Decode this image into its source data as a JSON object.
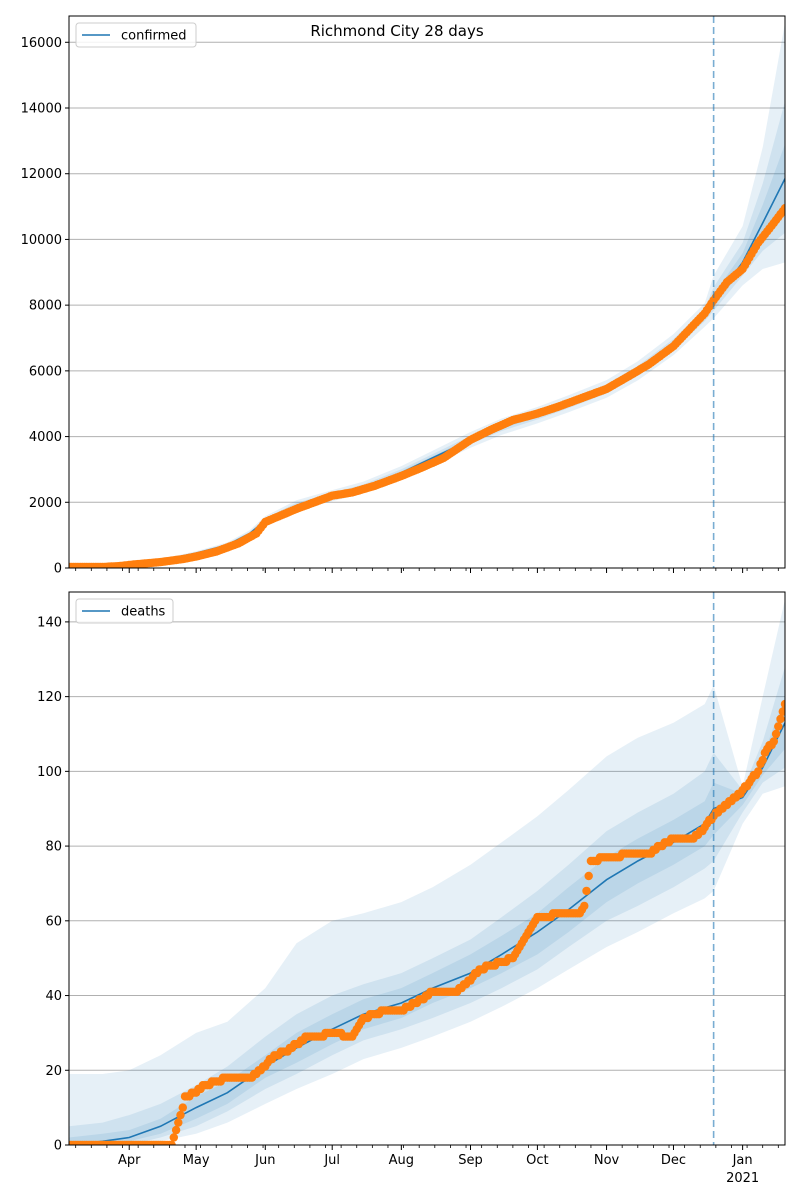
{
  "figure_title": "Richmond City 28 days",
  "colors": {
    "model_line": "#1f77b4",
    "observed_points": "#ff7f0e",
    "band": "#1f77b4",
    "forecast_marker": "#1f77b4",
    "grid": "#b0b0b0"
  },
  "forecast_start": "2020-12-19",
  "x_tick_labels": [
    "Apr",
    "May",
    "Jun",
    "Jul",
    "Aug",
    "Sep",
    "Oct",
    "Nov",
    "Dec",
    "Jan"
  ],
  "x_year_label": "2021",
  "chart_data": [
    {
      "type": "line",
      "legend": "confirmed",
      "legend_position": "top-left",
      "grid": "horizontal",
      "xlim": [
        "2020-03-05",
        "2021-01-20"
      ],
      "ylim": [
        0,
        16800
      ],
      "yticks": [
        0,
        2000,
        4000,
        6000,
        8000,
        10000,
        12000,
        14000,
        16000
      ],
      "model": {
        "x": [
          "2020-03-05",
          "2020-03-25",
          "2020-04-01",
          "2020-04-15",
          "2020-05-01",
          "2020-05-15",
          "2020-05-25",
          "2020-06-01",
          "2020-06-15",
          "2020-07-01",
          "2020-07-15",
          "2020-08-01",
          "2020-08-15",
          "2020-09-01",
          "2020-09-15",
          "2020-10-01",
          "2020-10-15",
          "2020-11-01",
          "2020-11-15",
          "2020-12-01",
          "2020-12-15",
          "2020-12-19",
          "2021-01-01",
          "2021-01-10",
          "2021-01-20"
        ],
        "y": [
          0,
          20,
          80,
          230,
          450,
          700,
          1050,
          1450,
          1900,
          2200,
          2450,
          2900,
          3350,
          3900,
          4300,
          4650,
          5000,
          5450,
          6000,
          6800,
          7700,
          8100,
          9300,
          10500,
          11850
        ]
      },
      "bands": [
        {
          "lower": [
            0,
            10,
            60,
            190,
            390,
            620,
            950,
            1320,
            1740,
            2030,
            2270,
            2700,
            3130,
            3660,
            4050,
            4400,
            4740,
            5180,
            5710,
            6480,
            7340,
            7600,
            8600,
            9100,
            9300
          ],
          "upper": [
            0,
            30,
            100,
            270,
            510,
            780,
            1150,
            1580,
            2060,
            2370,
            2630,
            3100,
            3570,
            4140,
            4550,
            4900,
            5260,
            5720,
            6290,
            7120,
            8060,
            8900,
            10400,
            12800,
            16600
          ]
        },
        {
          "lower": [
            0,
            14,
            68,
            205,
            415,
            655,
            995,
            1380,
            1815,
            2110,
            2355,
            2795,
            3235,
            3775,
            4170,
            4520,
            4865,
            5310,
            5850,
            6630,
            7510,
            7830,
            8900,
            9650,
            10200
          ],
          "upper": [
            0,
            26,
            92,
            255,
            485,
            745,
            1105,
            1520,
            1985,
            2290,
            2545,
            3005,
            3465,
            4025,
            4430,
            4780,
            5135,
            5590,
            6150,
            6970,
            7890,
            8550,
            9900,
            11700,
            14200
          ]
        },
        {
          "lower": [
            0,
            17,
            74,
            218,
            433,
            678,
            1022,
            1416,
            1860,
            2158,
            2404,
            2851,
            3296,
            3842,
            4240,
            4590,
            4935,
            5385,
            5930,
            6720,
            7610,
            7970,
            9080,
            10000,
            10900
          ],
          "upper": [
            0,
            23,
            86,
            242,
            467,
            722,
            1078,
            1484,
            1940,
            2242,
            2496,
            2949,
            3404,
            3958,
            4360,
            4710,
            5065,
            5515,
            6070,
            6880,
            7790,
            8330,
            9580,
            11050,
            12900
          ]
        }
      ],
      "observed": {
        "x": [
          "2020-03-05",
          "2020-03-20",
          "2020-03-28",
          "2020-04-05",
          "2020-04-15",
          "2020-04-25",
          "2020-05-01",
          "2020-05-10",
          "2020-05-20",
          "2020-05-28",
          "2020-06-01",
          "2020-06-08",
          "2020-06-15",
          "2020-06-25",
          "2020-07-01",
          "2020-07-10",
          "2020-07-20",
          "2020-08-01",
          "2020-08-10",
          "2020-08-20",
          "2020-09-01",
          "2020-09-10",
          "2020-09-20",
          "2020-10-01",
          "2020-10-10",
          "2020-10-20",
          "2020-11-01",
          "2020-11-10",
          "2020-11-20",
          "2020-12-01",
          "2020-12-08",
          "2020-12-15",
          "2020-12-19",
          "2020-12-25",
          "2021-01-01",
          "2021-01-08",
          "2021-01-15",
          "2021-01-20"
        ],
        "y": [
          30,
          30,
          60,
          120,
          180,
          270,
          350,
          500,
          750,
          1050,
          1400,
          1600,
          1800,
          2050,
          2200,
          2300,
          2500,
          2800,
          3050,
          3350,
          3900,
          4200,
          4500,
          4700,
          4900,
          5150,
          5450,
          5800,
          6200,
          6750,
          7250,
          7750,
          8150,
          8700,
          9100,
          9900,
          10500,
          10950
        ]
      }
    },
    {
      "type": "line",
      "legend": "deaths",
      "legend_position": "top-left",
      "grid": "horizontal",
      "xlim": [
        "2020-03-05",
        "2021-01-20"
      ],
      "ylim": [
        0,
        148
      ],
      "yticks": [
        0,
        20,
        40,
        60,
        80,
        100,
        120,
        140
      ],
      "model": {
        "x": [
          "2020-03-05",
          "2020-03-20",
          "2020-04-01",
          "2020-04-15",
          "2020-05-01",
          "2020-05-15",
          "2020-06-01",
          "2020-06-15",
          "2020-07-01",
          "2020-07-15",
          "2020-08-01",
          "2020-08-15",
          "2020-09-01",
          "2020-09-15",
          "2020-10-01",
          "2020-10-15",
          "2020-11-01",
          "2020-11-15",
          "2020-12-01",
          "2020-12-15",
          "2020-12-19",
          "2021-01-01",
          "2021-01-10",
          "2021-01-20"
        ],
        "y": [
          0,
          1,
          2,
          5,
          10,
          14,
          21,
          26,
          31,
          35,
          38,
          42,
          46,
          51,
          57,
          63,
          71,
          76,
          81,
          86,
          90,
          93,
          101,
          113
        ]
      },
      "bands": [
        {
          "lower": [
            0,
            0,
            0,
            1,
            3,
            6,
            11,
            15,
            19,
            23,
            26,
            29,
            33,
            37,
            42,
            47,
            53,
            57,
            62,
            66,
            68,
            86,
            94,
            96
          ],
          "upper": [
            19,
            19,
            20,
            24,
            30,
            33,
            42,
            54,
            60,
            62,
            65,
            69,
            75,
            81,
            88,
            95,
            104,
            109,
            113,
            118,
            123,
            96,
            120,
            146
          ]
        },
        {
          "lower": [
            0,
            0,
            0,
            2,
            5,
            9,
            15,
            19,
            24,
            28,
            31,
            34,
            38,
            42,
            47,
            53,
            60,
            64,
            69,
            74,
            76,
            89,
            97,
            101
          ],
          "upper": [
            5,
            6,
            8,
            11,
            16,
            21,
            29,
            35,
            40,
            43,
            46,
            50,
            55,
            61,
            68,
            75,
            84,
            89,
            94,
            100,
            105,
            95,
            108,
            128
          ]
        },
        {
          "lower": [
            0,
            0,
            1,
            3,
            7,
            11,
            18,
            22,
            27,
            31,
            34,
            38,
            42,
            46,
            51,
            57,
            65,
            70,
            75,
            80,
            83,
            91,
            99,
            106
          ],
          "upper": [
            2,
            3,
            4,
            7,
            13,
            17,
            24,
            30,
            35,
            39,
            42,
            46,
            51,
            56,
            62,
            69,
            77,
            82,
            87,
            92,
            97,
            94,
            104,
            120
          ]
        }
      ],
      "observed": {
        "x": [
          "2020-03-05",
          "2020-03-31",
          "2020-04-20",
          "2020-04-25",
          "2020-04-26",
          "2020-05-01",
          "2020-05-05",
          "2020-05-10",
          "2020-05-15",
          "2020-05-25",
          "2020-06-01",
          "2020-06-05",
          "2020-06-10",
          "2020-06-15",
          "2020-06-20",
          "2020-06-25",
          "2020-07-01",
          "2020-07-10",
          "2020-07-15",
          "2020-07-20",
          "2020-07-25",
          "2020-08-01",
          "2020-08-10",
          "2020-08-15",
          "2020-08-25",
          "2020-09-01",
          "2020-09-05",
          "2020-09-15",
          "2020-09-20",
          "2020-09-25",
          "2020-10-01",
          "2020-10-15",
          "2020-10-20",
          "2020-10-22",
          "2020-10-25",
          "2020-11-01",
          "2020-11-15",
          "2020-11-20",
          "2020-11-25",
          "2020-12-01",
          "2020-12-10",
          "2020-12-15",
          "2020-12-19",
          "2020-12-25",
          "2021-01-01",
          "2021-01-08",
          "2021-01-12",
          "2021-01-15",
          "2021-01-20"
        ],
        "y": [
          0,
          0,
          0,
          10,
          13,
          14,
          16,
          17,
          18,
          18,
          21,
          24,
          25,
          27,
          29,
          29,
          30,
          29,
          34,
          35,
          36,
          36,
          39,
          41,
          41,
          44,
          47,
          49,
          50,
          55,
          61,
          62,
          62,
          64,
          76,
          77,
          78,
          78,
          80,
          82,
          82,
          85,
          88,
          91,
          95,
          100,
          106,
          108,
          118
        ]
      }
    }
  ]
}
